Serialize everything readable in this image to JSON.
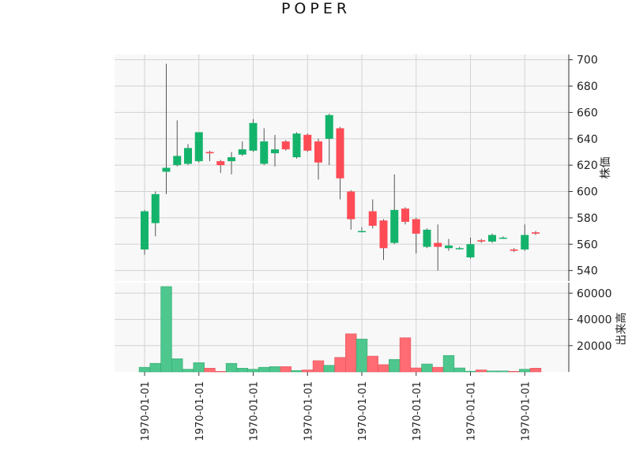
{
  "chart_data": {
    "type": "candlestick",
    "title": "POPER",
    "price_axis": {
      "label": "株価",
      "ylim": [
        532,
        704
      ],
      "ticks": [
        540,
        560,
        580,
        600,
        620,
        640,
        660,
        680,
        700
      ]
    },
    "volume_axis": {
      "label": "出来高",
      "ylim": [
        0,
        68000
      ],
      "ticks": [
        20000,
        40000,
        60000
      ]
    },
    "x_tick_labels": [
      "1970-01-01",
      "1970-01-01",
      "1970-01-01",
      "1970-01-01",
      "1970-01-01",
      "1970-01-01",
      "1970-01-01",
      "1970-01-01"
    ],
    "grid": true,
    "colors": {
      "up": "#14b36b",
      "down": "#ff4b55",
      "up_volume": "#4ec78e",
      "down_volume": "#ff6c73",
      "wick": "#555555",
      "background": "#f8f8f8",
      "grid": "#d2d2d2"
    },
    "candles": [
      {
        "o": 556,
        "h": 586,
        "l": 552,
        "c": 585,
        "v": 3500
      },
      {
        "o": 576,
        "h": 600,
        "l": 566,
        "c": 598,
        "v": 6500
      },
      {
        "o": 615,
        "h": 697,
        "l": 598,
        "c": 618,
        "v": 65000
      },
      {
        "o": 620,
        "h": 654,
        "l": 619,
        "c": 627,
        "v": 10000
      },
      {
        "o": 621,
        "h": 636,
        "l": 620,
        "c": 633,
        "v": 2000
      },
      {
        "o": 623,
        "h": 645,
        "l": 622,
        "c": 645,
        "v": 7000
      },
      {
        "o": 630,
        "h": 631,
        "l": 623,
        "c": 629,
        "v": 2800
      },
      {
        "o": 623,
        "h": 624,
        "l": 614,
        "c": 620,
        "v": 400
      },
      {
        "o": 623,
        "h": 630,
        "l": 613,
        "c": 626,
        "v": 6500
      },
      {
        "o": 628,
        "h": 638,
        "l": 627,
        "c": 632,
        "v": 2800
      },
      {
        "o": 631,
        "h": 655,
        "l": 630,
        "c": 652,
        "v": 2000
      },
      {
        "o": 621,
        "h": 648,
        "l": 620,
        "c": 638,
        "v": 3500
      },
      {
        "o": 629,
        "h": 643,
        "l": 619,
        "c": 632,
        "v": 4000
      },
      {
        "o": 638,
        "h": 639,
        "l": 631,
        "c": 632,
        "v": 4000
      },
      {
        "o": 626,
        "h": 645,
        "l": 625,
        "c": 644,
        "v": 1000
      },
      {
        "o": 643,
        "h": 644,
        "l": 630,
        "c": 631,
        "v": 1500
      },
      {
        "o": 638,
        "h": 640,
        "l": 609,
        "c": 622,
        "v": 8500
      },
      {
        "o": 640,
        "h": 659,
        "l": 620,
        "c": 658,
        "v": 5000
      },
      {
        "o": 648,
        "h": 649,
        "l": 594,
        "c": 610,
        "v": 11000
      },
      {
        "o": 600,
        "h": 601,
        "l": 571,
        "c": 579,
        "v": 29000
      },
      {
        "o": 570,
        "h": 573,
        "l": 569,
        "c": 570,
        "v": 25000
      },
      {
        "o": 585,
        "h": 594,
        "l": 572,
        "c": 574,
        "v": 12000
      },
      {
        "o": 578,
        "h": 579,
        "l": 548,
        "c": 557,
        "v": 5500
      },
      {
        "o": 561,
        "h": 613,
        "l": 560,
        "c": 586,
        "v": 9500
      },
      {
        "o": 587,
        "h": 588,
        "l": 575,
        "c": 577,
        "v": 26000
      },
      {
        "o": 579,
        "h": 580,
        "l": 553,
        "c": 568,
        "v": 3000
      },
      {
        "o": 558,
        "h": 572,
        "l": 557,
        "c": 571,
        "v": 6000
      },
      {
        "o": 561,
        "h": 575,
        "l": 540,
        "c": 558,
        "v": 3500
      },
      {
        "o": 557,
        "h": 564,
        "l": 555,
        "c": 559,
        "v": 12500
      },
      {
        "o": 557,
        "h": 558,
        "l": 556,
        "c": 557,
        "v": 3000
      },
      {
        "o": 550,
        "h": 565,
        "l": 549,
        "c": 560,
        "v": 500
      },
      {
        "o": 563,
        "h": 564,
        "l": 561,
        "c": 562,
        "v": 1500
      },
      {
        "o": 562,
        "h": 568,
        "l": 561,
        "c": 567,
        "v": 700
      },
      {
        "o": 565,
        "h": 566,
        "l": 564,
        "c": 565,
        "v": 700
      },
      {
        "o": 556,
        "h": 557,
        "l": 554,
        "c": 555,
        "v": 400
      },
      {
        "o": 556,
        "h": 575,
        "l": 555,
        "c": 567,
        "v": 2000
      },
      {
        "o": 569,
        "h": 570,
        "l": 567,
        "c": 568,
        "v": 2800
      }
    ]
  }
}
